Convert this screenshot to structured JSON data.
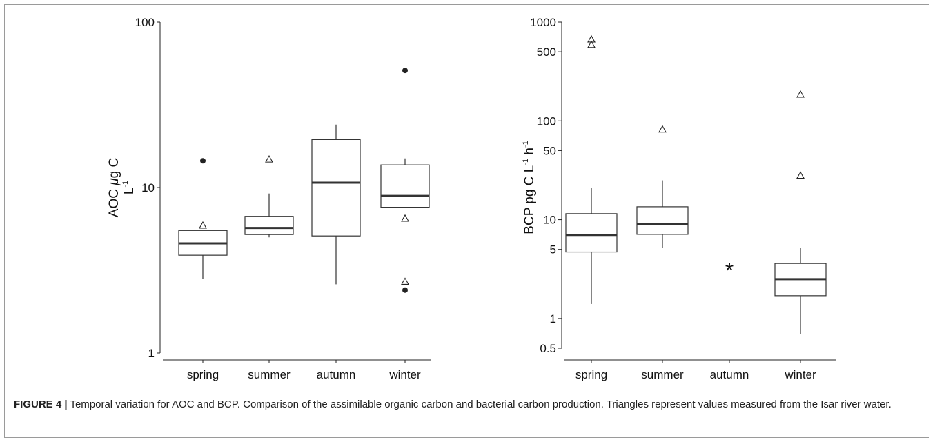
{
  "chart_data": [
    {
      "type": "box",
      "ylabel_line1_prefix": "AOC ",
      "ylabel_line1_mu": "μ",
      "ylabel_line1_suffix": "g C",
      "ylabel_line2": "L",
      "ylabel_line2_sup": "-1",
      "yscale": "log",
      "ylim": [
        1,
        100
      ],
      "yticks": [
        1,
        10,
        100
      ],
      "ytick_labels": [
        "1",
        "10",
        "100"
      ],
      "categories": [
        "spring",
        "summer",
        "autumn",
        "winter"
      ],
      "boxes": [
        {
          "category": "spring",
          "whislo": 2.8,
          "q1": 3.9,
          "med": 4.6,
          "q3": 5.5,
          "whishi": 5.5,
          "outliers": [
            14.5
          ],
          "isar": [
            5.9
          ]
        },
        {
          "category": "summer",
          "whislo": 5.0,
          "q1": 5.2,
          "med": 5.7,
          "q3": 6.7,
          "whishi": 9.2,
          "outliers": [],
          "isar": [
            14.8
          ]
        },
        {
          "category": "autumn",
          "whislo": 2.6,
          "q1": 5.1,
          "med": 10.7,
          "q3": 19.5,
          "whishi": 24.0,
          "outliers": [],
          "isar": []
        },
        {
          "category": "winter",
          "whislo": 7.6,
          "q1": 7.6,
          "med": 8.9,
          "q3": 13.7,
          "whishi": 15.0,
          "outliers": [
            51.0,
            2.4
          ],
          "isar": [
            6.5,
            2.7
          ]
        }
      ]
    },
    {
      "type": "box",
      "ylabel_main": "BCP pg C L",
      "ylabel_sup1": "-1",
      "ylabel_mid": " h",
      "ylabel_sup2": "-1",
      "yscale": "log",
      "ylim": [
        0.5,
        1000
      ],
      "yticks": [
        0.5,
        1,
        5,
        10,
        50,
        100,
        500,
        1000
      ],
      "ytick_labels": [
        "0.5",
        "1",
        "5",
        "10",
        "50",
        "100",
        "500",
        "1000"
      ],
      "categories": [
        "spring",
        "summer",
        "autumn",
        "winter"
      ],
      "boxes": [
        {
          "category": "spring",
          "whislo": 1.4,
          "q1": 4.7,
          "med": 7.0,
          "q3": 11.5,
          "whishi": 21.0,
          "outliers": [],
          "isar": [
            670,
            590
          ]
        },
        {
          "category": "summer",
          "whislo": 5.2,
          "q1": 7.1,
          "med": 9.0,
          "q3": 13.5,
          "whishi": 25.0,
          "outliers": [],
          "isar": [
            82
          ]
        },
        {
          "category": "autumn",
          "whislo": null,
          "q1": null,
          "med": null,
          "q3": null,
          "whishi": null,
          "outliers": [],
          "isar": [],
          "annotation": "*",
          "annotation_value": 3.3
        },
        {
          "category": "winter",
          "whislo": 0.7,
          "q1": 1.7,
          "med": 2.5,
          "q3": 3.6,
          "whishi": 5.2,
          "outliers": [],
          "isar": [
            185,
            28
          ]
        }
      ]
    }
  ],
  "caption": {
    "label": "FIGURE 4 |",
    "text": " Temporal variation for AOC and BCP. Comparison of the assimilable organic carbon and bacterial carbon production. Triangles represent values measured from the Isar river water."
  }
}
